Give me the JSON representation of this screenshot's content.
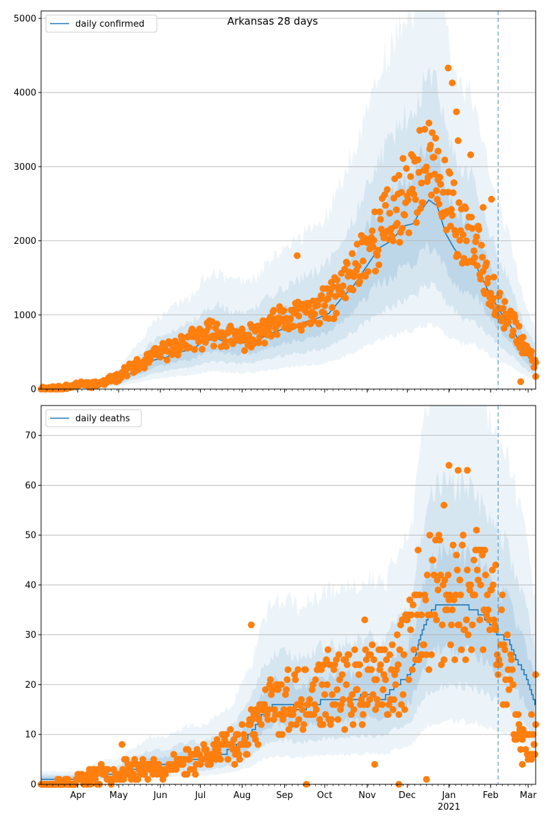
{
  "chart_data": [
    {
      "type": "line",
      "title": "Arkansas 28 days",
      "legend": {
        "entries": [
          "daily confirmed"
        ],
        "placement": "top-left"
      },
      "ylim": [
        0,
        5100
      ],
      "yticks": [
        0,
        1000,
        2000,
        3000,
        4000,
        5000
      ],
      "grid": "horizontal",
      "series": [
        {
          "name": "daily confirmed",
          "kind": "mean-line",
          "color": "#1f77b4",
          "knots": [
            [
              0,
              0
            ],
            [
              20,
              5
            ],
            [
              35,
              30
            ],
            [
              45,
              60
            ],
            [
              60,
              35
            ],
            [
              75,
              60
            ],
            [
              95,
              120
            ],
            [
              105,
              200
            ],
            [
              120,
              280
            ],
            [
              135,
              390
            ],
            [
              150,
              430
            ],
            [
              165,
              500
            ],
            [
              180,
              530
            ],
            [
              195,
              640
            ],
            [
              210,
              680
            ],
            [
              225,
              630
            ],
            [
              240,
              620
            ],
            [
              255,
              640
            ],
            [
              270,
              720
            ],
            [
              285,
              790
            ],
            [
              300,
              850
            ],
            [
              315,
              900
            ],
            [
              330,
              950
            ],
            [
              345,
              1020
            ],
            [
              360,
              1220
            ],
            [
              375,
              1400
            ],
            [
              390,
              1650
            ],
            [
              405,
              1900
            ],
            [
              420,
              2000
            ],
            [
              435,
              2200
            ],
            [
              446,
              2230
            ],
            [
              455,
              2400
            ],
            [
              465,
              2550
            ],
            [
              475,
              2470
            ],
            [
              485,
              2100
            ],
            [
              495,
              1900
            ],
            [
              505,
              1750
            ],
            [
              520,
              1700
            ],
            [
              535,
              1350
            ],
            [
              550,
              1050
            ],
            [
              565,
              820
            ],
            [
              575,
              600
            ],
            [
              585,
              420
            ],
            [
              593,
              350
            ]
          ]
        },
        {
          "name": "daily confirmed observations",
          "kind": "scatter",
          "color": "#ff7f0e",
          "knots": [
            [
              0,
              5
            ],
            [
              20,
              10
            ],
            [
              35,
              40
            ],
            [
              50,
              80
            ],
            [
              60,
              60
            ],
            [
              75,
              90
            ],
            [
              95,
              180
            ],
            [
              105,
              280
            ],
            [
              120,
              320
            ],
            [
              135,
              450
            ],
            [
              150,
              520
            ],
            [
              165,
              600
            ],
            [
              180,
              650
            ],
            [
              195,
              720
            ],
            [
              210,
              780
            ],
            [
              225,
              700
            ],
            [
              240,
              680
            ],
            [
              255,
              700
            ],
            [
              270,
              800
            ],
            [
              285,
              900
            ],
            [
              300,
              950
            ],
            [
              315,
              1000
            ],
            [
              330,
              1050
            ],
            [
              345,
              1150
            ],
            [
              360,
              1350
            ],
            [
              375,
              1600
            ],
            [
              390,
              1900
            ],
            [
              405,
              2100
            ],
            [
              420,
              2300
            ],
            [
              435,
              2600
            ],
            [
              446,
              2800
            ],
            [
              455,
              2900
            ],
            [
              465,
              3000
            ],
            [
              475,
              2800
            ],
            [
              485,
              2500
            ],
            [
              495,
              2300
            ],
            [
              505,
              2100
            ],
            [
              520,
              1900
            ],
            [
              535,
              1500
            ],
            [
              550,
              1150
            ],
            [
              565,
              900
            ],
            [
              575,
              650
            ],
            [
              585,
              450
            ],
            [
              593,
              350
            ]
          ],
          "jitter": 0.22,
          "seed": 11,
          "outliers": [
            [
              307,
              1800
            ],
            [
              488,
              4330
            ],
            [
              493,
              4130
            ],
            [
              498,
              3740
            ],
            [
              466,
              3240
            ],
            [
              476,
              3210
            ],
            [
              500,
              3350
            ],
            [
              515,
              3160
            ],
            [
              540,
              2560
            ],
            [
              530,
              2450
            ],
            [
              575,
              100
            ],
            [
              593,
              170
            ]
          ]
        }
      ],
      "bands": [
        {
          "kind": "inner",
          "color": "#1f77b4",
          "opacity": 0.13,
          "lower_factor": 0.75,
          "upper_factor": 1.28
        },
        {
          "kind": "middle",
          "color": "#1f77b4",
          "opacity": 0.11,
          "lower_factor": 0.55,
          "upper_factor": 1.65
        },
        {
          "kind": "outer",
          "color": "#1f77b4",
          "opacity": 0.08,
          "lower_factor": 0.35,
          "upper_factor": 2.3
        }
      ],
      "vline": {
        "day": 548,
        "color": "#1f77b4",
        "style": "dashed"
      }
    },
    {
      "type": "line",
      "title": "",
      "legend": {
        "entries": [
          "daily deaths"
        ],
        "placement": "top-left"
      },
      "ylim": [
        0,
        76
      ],
      "yticks": [
        0,
        10,
        20,
        30,
        40,
        50,
        60,
        70
      ],
      "grid": "horizontal",
      "series": [
        {
          "name": "daily deaths",
          "kind": "mean-line",
          "color": "#1f77b4",
          "step": true,
          "knots": [
            [
              0,
              1
            ],
            [
              30,
              1
            ],
            [
              50,
              1
            ],
            [
              70,
              2
            ],
            [
              90,
              2
            ],
            [
              110,
              3
            ],
            [
              130,
              4
            ],
            [
              150,
              4
            ],
            [
              175,
              5
            ],
            [
              195,
              5
            ],
            [
              215,
              6
            ],
            [
              230,
              7
            ],
            [
              245,
              9
            ],
            [
              255,
              11
            ],
            [
              265,
              14
            ],
            [
              280,
              16
            ],
            [
              295,
              16
            ],
            [
              310,
              15
            ],
            [
              325,
              16
            ],
            [
              345,
              17
            ],
            [
              360,
              17
            ],
            [
              375,
              17
            ],
            [
              390,
              18
            ],
            [
              410,
              17
            ],
            [
              425,
              20
            ],
            [
              437,
              21
            ],
            [
              445,
              23
            ],
            [
              455,
              30
            ],
            [
              465,
              34
            ],
            [
              475,
              36
            ],
            [
              490,
              36
            ],
            [
              505,
              36
            ],
            [
              520,
              35
            ],
            [
              535,
              33
            ],
            [
              548,
              30
            ],
            [
              560,
              29
            ],
            [
              570,
              25
            ],
            [
              580,
              22
            ],
            [
              593,
              16
            ]
          ]
        },
        {
          "name": "daily deaths observations",
          "kind": "scatter",
          "color": "#ff7f0e",
          "knots": [
            [
              0,
              0
            ],
            [
              30,
              0
            ],
            [
              50,
              1
            ],
            [
              70,
              2
            ],
            [
              90,
              2
            ],
            [
              110,
              3
            ],
            [
              130,
              3
            ],
            [
              150,
              3
            ],
            [
              175,
              5
            ],
            [
              195,
              6
            ],
            [
              215,
              7
            ],
            [
              230,
              8
            ],
            [
              245,
              9
            ],
            [
              255,
              11
            ],
            [
              265,
              14
            ],
            [
              280,
              16
            ],
            [
              295,
              17
            ],
            [
              310,
              16
            ],
            [
              325,
              17
            ],
            [
              345,
              19
            ],
            [
              360,
              19
            ],
            [
              375,
              19
            ],
            [
              390,
              20
            ],
            [
              410,
              19
            ],
            [
              425,
              21
            ],
            [
              437,
              25
            ],
            [
              445,
              30
            ],
            [
              455,
              36
            ],
            [
              465,
              38
            ],
            [
              475,
              36
            ],
            [
              490,
              36
            ],
            [
              505,
              38
            ],
            [
              520,
              40
            ],
            [
              535,
              38
            ],
            [
              548,
              30
            ],
            [
              560,
              25
            ],
            [
              570,
              12
            ],
            [
              580,
              8
            ],
            [
              593,
              8
            ]
          ],
          "jitter": 0.4,
          "seed": 23,
          "outliers": [
            [
              97,
              8
            ],
            [
              122,
              5
            ],
            [
              252,
              32
            ],
            [
              318,
              0
            ],
            [
              388,
              33
            ],
            [
              400,
              4
            ],
            [
              429,
              0
            ],
            [
              489,
              64
            ],
            [
              500,
              63
            ],
            [
              511,
              63
            ],
            [
              483,
              56
            ],
            [
              462,
              1
            ],
            [
              545,
              44
            ],
            [
              577,
              4
            ],
            [
              593,
              22
            ],
            [
              588,
              14
            ]
          ]
        }
      ],
      "bands": [
        {
          "kind": "inner",
          "color": "#1f77b4",
          "opacity": 0.13,
          "lower_factor": 0.75,
          "upper_factor": 1.28
        },
        {
          "kind": "middle",
          "color": "#1f77b4",
          "opacity": 0.11,
          "lower_factor": 0.55,
          "upper_factor": 1.65
        },
        {
          "kind": "outer",
          "color": "#1f77b4",
          "opacity": 0.08,
          "lower_factor": 0.35,
          "upper_factor": 2.3
        }
      ],
      "vline": {
        "day": 548,
        "color": "#1f77b4",
        "style": "dashed"
      }
    }
  ],
  "xaxis": {
    "shared": true,
    "unit": "days",
    "range_days": [
      0,
      593
    ],
    "month_ticks": [
      {
        "day": 44,
        "label": "Apr",
        "sub": ""
      },
      {
        "day": 93,
        "label": "May",
        "sub": ""
      },
      {
        "day": 143,
        "label": "Jun",
        "sub": ""
      },
      {
        "day": 191,
        "label": "Jul",
        "sub": ""
      },
      {
        "day": 241,
        "label": "Aug",
        "sub": ""
      },
      {
        "day": 292,
        "label": "Sep",
        "sub": ""
      },
      {
        "day": 340,
        "label": "Oct",
        "sub": ""
      },
      {
        "day": 391,
        "label": "Nov",
        "sub": ""
      },
      {
        "day": 439,
        "label": "Dec",
        "sub": ""
      },
      {
        "day": 489,
        "label": "Jan",
        "sub": "2021"
      },
      {
        "day": 539,
        "label": "Feb",
        "sub": ""
      },
      {
        "day": 584,
        "label": "Mar",
        "sub": ""
      }
    ],
    "minor_tick_every_days": 7
  }
}
